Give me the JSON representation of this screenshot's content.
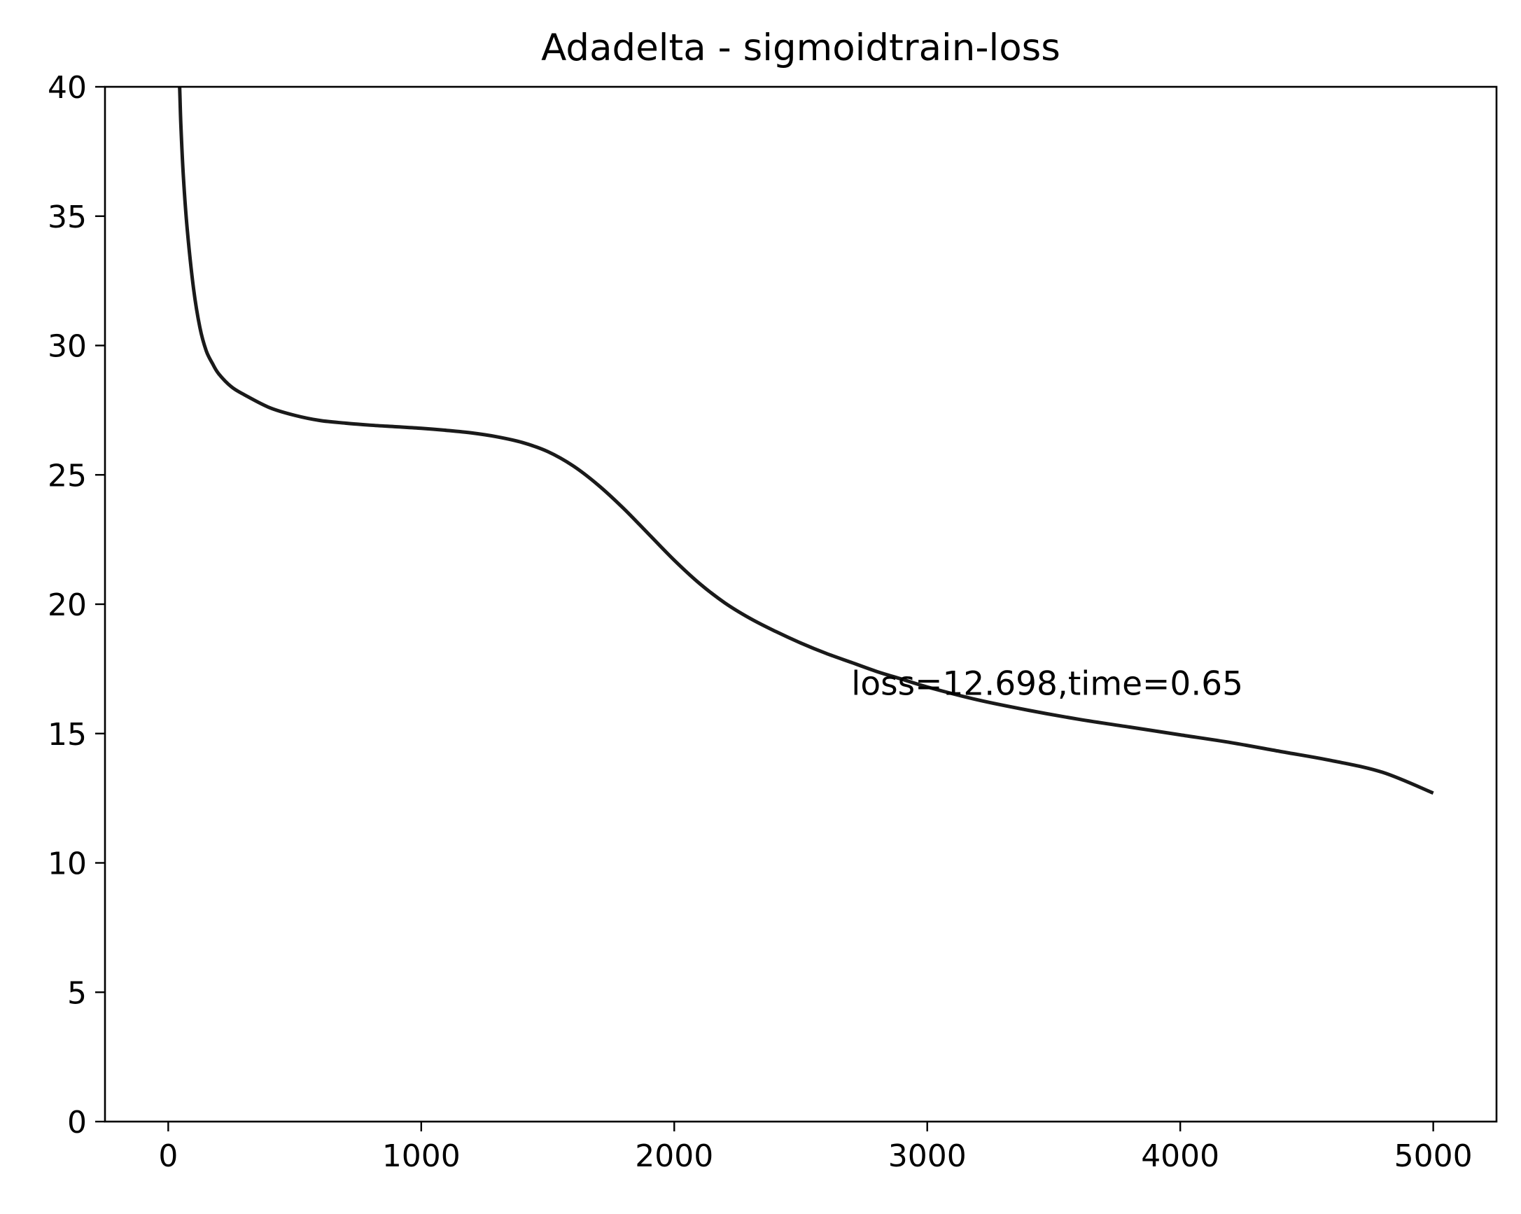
{
  "chart_data": {
    "type": "line",
    "title": "Adadelta - sigmoidtrain-loss",
    "xlabel": "",
    "ylabel": "",
    "xlim": [
      -250,
      5250
    ],
    "ylim": [
      0,
      40
    ],
    "x_ticks": [
      0,
      1000,
      2000,
      3000,
      4000,
      5000
    ],
    "y_ticks": [
      0,
      5,
      10,
      15,
      20,
      25,
      30,
      35,
      40
    ],
    "grid": false,
    "legend": "none",
    "series": [
      {
        "color": "#1a1a1a",
        "x": [
          40,
          45,
          50,
          60,
          75,
          100,
          125,
          150,
          175,
          200,
          250,
          300,
          400,
          500,
          600,
          700,
          800,
          900,
          1000,
          1100,
          1200,
          1300,
          1400,
          1500,
          1600,
          1700,
          1800,
          1900,
          2000,
          2100,
          2200,
          2300,
          2400,
          2500,
          2600,
          2700,
          2800,
          2900,
          3000,
          3200,
          3400,
          3600,
          3800,
          4000,
          4200,
          4400,
          4600,
          4800,
          5000
        ],
        "y": [
          41.0,
          40.0,
          38.5,
          36.5,
          34.5,
          32.2,
          30.7,
          29.8,
          29.3,
          28.9,
          28.4,
          28.1,
          27.6,
          27.3,
          27.1,
          27.0,
          26.92,
          26.86,
          26.8,
          26.72,
          26.62,
          26.47,
          26.25,
          25.9,
          25.35,
          24.6,
          23.7,
          22.7,
          21.7,
          20.8,
          20.05,
          19.45,
          18.95,
          18.5,
          18.1,
          17.75,
          17.4,
          17.1,
          16.8,
          16.3,
          15.9,
          15.55,
          15.25,
          14.95,
          14.65,
          14.3,
          13.95,
          13.5,
          12.698
        ]
      }
    ],
    "annotations": [
      {
        "text": "loss=12.698,time=0.65",
        "x": 2700,
        "y": 16.5
      }
    ]
  }
}
